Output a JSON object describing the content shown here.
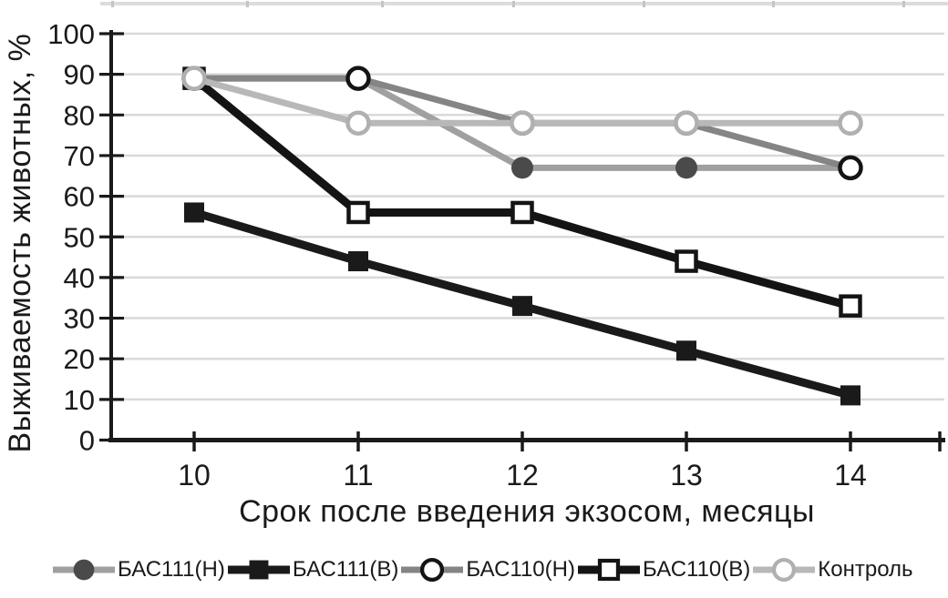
{
  "chart_data": {
    "type": "line",
    "title": "",
    "xlabel": "Срок после введения экзосом, месяцы",
    "ylabel": "Выживаемость животных, %",
    "x": [
      10,
      11,
      12,
      13,
      14
    ],
    "ylim": [
      0,
      100
    ],
    "yticks": [
      0,
      10,
      20,
      30,
      40,
      50,
      60,
      70,
      80,
      90,
      100
    ],
    "grid": "horizontal-light-gray",
    "legend_position": "bottom",
    "axis_color": "#1a1a1a",
    "gridline_color": "#d9d9d9",
    "series": [
      {
        "key": "bas111n",
        "name": "БАС111(Н)",
        "values": [
          89,
          89,
          67,
          67,
          67
        ],
        "line_color": "#a0a0a0",
        "marker": "filled-circle",
        "marker_fill": "#4a4a4a",
        "marker_stroke": "#a0a0a0"
      },
      {
        "key": "bas111v",
        "name": "БАС111(В)",
        "values": [
          56,
          44,
          33,
          22,
          11
        ],
        "line_color": "#1a1a1a",
        "marker": "filled-square",
        "marker_fill": "#1a1a1a",
        "marker_stroke": "#1a1a1a"
      },
      {
        "key": "bas110n",
        "name": "БАС110(Н)",
        "values": [
          89,
          89,
          78,
          78,
          67
        ],
        "line_color": "#858585",
        "marker": "open-circle",
        "marker_fill": "#ffffff",
        "marker_stroke": "#141414"
      },
      {
        "key": "bas110v",
        "name": "БАС110(В)",
        "values": [
          89,
          56,
          56,
          44,
          33
        ],
        "line_color": "#141414",
        "marker": "open-square",
        "marker_fill": "#ffffff",
        "marker_stroke": "#141414"
      },
      {
        "key": "control",
        "name": "Контроль",
        "values": [
          89,
          78,
          78,
          78,
          78
        ],
        "line_color": "#b8b8b8",
        "marker": "open-circle",
        "marker_fill": "#ffffff",
        "marker_stroke": "#b0b0b0"
      }
    ]
  },
  "decor": {
    "top_border_color": "#dcdcdc",
    "top_border_tick_color": "#c4c4c4"
  }
}
